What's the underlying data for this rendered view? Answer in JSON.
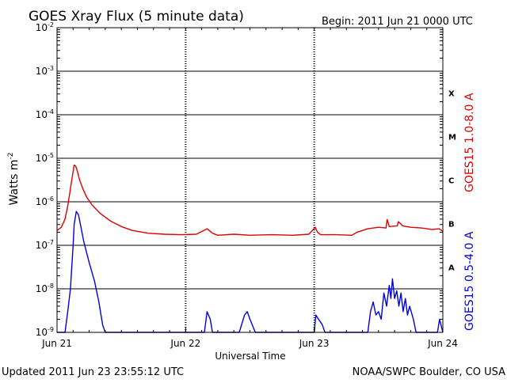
{
  "header": {
    "title": "GOES Xray Flux (5 minute data)",
    "begin": "Begin:  2011 Jun 21 0000 UTC"
  },
  "footer": {
    "updated": "Updated 2011 Jun 23 23:55:12 UTC",
    "credit": "NOAA/SWPC Boulder, CO USA"
  },
  "chart_data": {
    "type": "line",
    "title": "GOES Xray Flux (5 minute data)",
    "xlabel": "Universal Time",
    "ylabel": "Watts m",
    "ylabel_exponent": "-2",
    "y_scale": "log",
    "ylim": [
      1e-09,
      0.01
    ],
    "xlim": [
      0,
      72
    ],
    "x_unit": "hours since 2011 Jun 21 0000 UTC",
    "grid": true,
    "y_ticks": [
      {
        "base": "10",
        "exp": "-9",
        "value": 1e-09
      },
      {
        "base": "10",
        "exp": "-8",
        "value": 1e-08
      },
      {
        "base": "10",
        "exp": "-7",
        "value": 1e-07
      },
      {
        "base": "10",
        "exp": "-6",
        "value": 1e-06
      },
      {
        "base": "10",
        "exp": "-5",
        "value": 1e-05
      },
      {
        "base": "10",
        "exp": "-4",
        "value": 0.0001
      },
      {
        "base": "10",
        "exp": "-3",
        "value": 0.001
      },
      {
        "base": "10",
        "exp": "-2",
        "value": 0.01
      }
    ],
    "x_ticks": [
      {
        "label": "Jun 21",
        "hour": 0
      },
      {
        "label": "Jun 22",
        "hour": 24
      },
      {
        "label": "Jun 23",
        "hour": 48
      },
      {
        "label": "Jun 24",
        "hour": 72
      }
    ],
    "flare_classes": [
      {
        "label": "A",
        "value": 3.16e-08
      },
      {
        "label": "B",
        "value": 3.16e-07
      },
      {
        "label": "C",
        "value": 3.16e-06
      },
      {
        "label": "M",
        "value": 3.16e-05
      },
      {
        "label": "X",
        "value": 0.000316
      }
    ],
    "series": [
      {
        "name": "GOES15 1.0-8.0 A",
        "color": "#e00000",
        "x": [
          0,
          0.8,
          1.5,
          2.0,
          2.5,
          3.0,
          3.2,
          3.5,
          3.8,
          4.2,
          4.8,
          5.5,
          6.5,
          8,
          10,
          12,
          14,
          17,
          20,
          23,
          26,
          28,
          29,
          30,
          33,
          36,
          40,
          44,
          47,
          48.2,
          48.6,
          49.2,
          52,
          55,
          56,
          58,
          60,
          61.4,
          61.6,
          62,
          63.5,
          63.7,
          64.5,
          66,
          68,
          70,
          71.3,
          72
        ],
        "values": [
          2.2e-07,
          2.6e-07,
          4e-07,
          8e-07,
          2e-06,
          5e-06,
          7e-06,
          6.5e-06,
          5e-06,
          3.2e-06,
          2e-06,
          1.3e-06,
          8.5e-07,
          5.5e-07,
          3.6e-07,
          2.7e-07,
          2.2e-07,
          1.9e-07,
          1.8e-07,
          1.75e-07,
          1.8e-07,
          2.4e-07,
          1.9e-07,
          1.7e-07,
          1.8e-07,
          1.7e-07,
          1.75e-07,
          1.7e-07,
          1.8e-07,
          2.6e-07,
          2e-07,
          1.75e-07,
          1.75e-07,
          1.7e-07,
          2e-07,
          2.4e-07,
          2.6e-07,
          2.5e-07,
          3.9e-07,
          2.7e-07,
          2.8e-07,
          3.5e-07,
          2.8e-07,
          2.6e-07,
          2.5e-07,
          2.3e-07,
          2.4e-07,
          2.1e-07
        ]
      },
      {
        "name": "GOES15 0.5-4.0 A",
        "color": "#0000e0",
        "x": [
          0,
          1.0,
          1.5,
          2.0,
          2.5,
          3.0,
          3.2,
          3.6,
          4.0,
          4.5,
          5.0,
          6.0,
          7.0,
          7.8,
          8.5,
          9.0,
          9.3,
          9.6,
          10,
          14,
          16,
          18,
          20,
          24,
          26,
          27.5,
          28,
          28.6,
          29,
          30,
          32,
          34,
          35,
          35.5,
          36,
          37,
          40,
          42,
          44,
          46,
          48,
          48.3,
          48.8,
          49.5,
          50,
          52,
          54,
          56,
          58,
          58.5,
          59,
          59.5,
          60,
          60.5,
          61,
          61.5,
          62,
          62.3,
          62.6,
          63,
          63.4,
          63.8,
          64.2,
          64.6,
          65,
          65.4,
          65.8,
          66.5,
          67,
          68,
          70,
          71,
          71.4,
          72
        ],
        "values": [
          1e-09,
          1e-09,
          1e-09,
          3e-09,
          1e-08,
          1e-07,
          3e-07,
          6e-07,
          5e-07,
          2.5e-07,
          1.2e-07,
          4e-08,
          1.5e-08,
          5e-09,
          1.5e-09,
          1e-09,
          1e-09,
          1e-09,
          1e-09,
          1e-09,
          1e-09,
          1e-09,
          1e-09,
          1e-09,
          1e-09,
          1e-09,
          3e-09,
          2e-09,
          1e-09,
          1e-09,
          1e-09,
          1e-09,
          2.5e-09,
          3e-09,
          2e-09,
          1e-09,
          1e-09,
          1e-09,
          1e-09,
          1e-09,
          1e-09,
          2.5e-09,
          2e-09,
          1.5e-09,
          1e-09,
          1e-09,
          1e-09,
          1e-09,
          1e-09,
          3e-09,
          5e-09,
          2.5e-09,
          3e-09,
          2e-09,
          8e-09,
          4e-09,
          1.2e-08,
          6e-09,
          1.7e-08,
          6e-09,
          9e-09,
          4e-09,
          8e-09,
          3e-09,
          6e-09,
          2.5e-09,
          4e-09,
          2e-09,
          1e-09,
          1e-09,
          1e-09,
          1e-09,
          2e-09,
          1e-09
        ]
      }
    ]
  }
}
